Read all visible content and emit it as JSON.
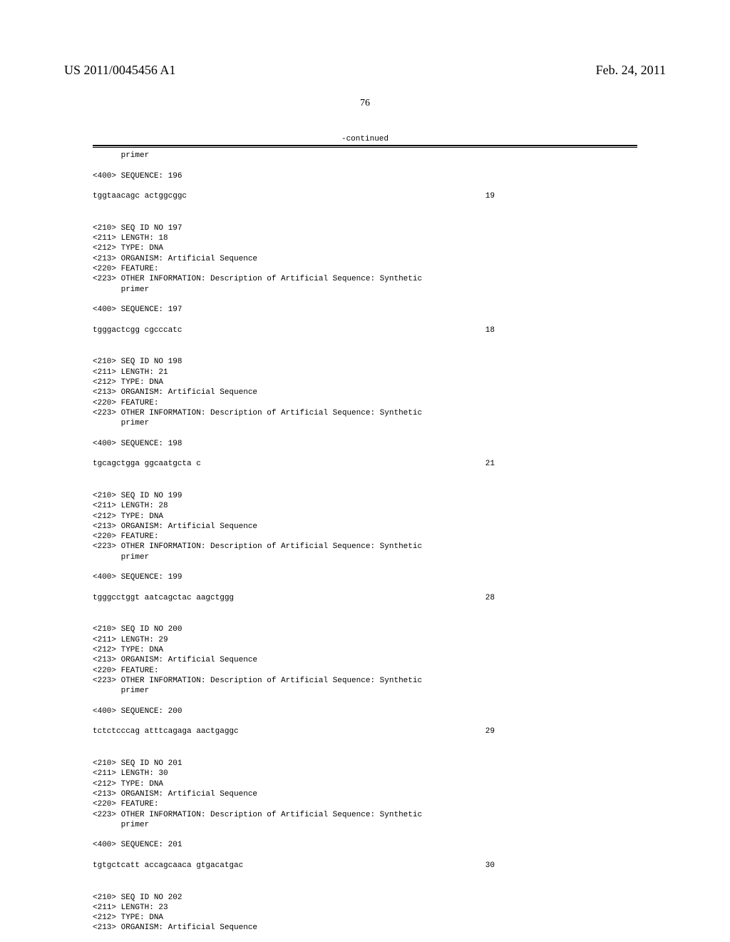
{
  "header": {
    "publication_number": "US 2011/0045456 A1",
    "publication_date": "Feb. 24, 2011"
  },
  "page_number": "76",
  "continued_label": "-continued",
  "sequences": [
    {
      "pre_lines": [
        "      primer",
        "",
        "<400> SEQUENCE: 196",
        ""
      ],
      "seq_text": "tggtaacagc actggcggc",
      "seq_length": "19"
    },
    {
      "pre_lines": [
        "<210> SEQ ID NO 197",
        "<211> LENGTH: 18",
        "<212> TYPE: DNA",
        "<213> ORGANISM: Artificial Sequence",
        "<220> FEATURE:",
        "<223> OTHER INFORMATION: Description of Artificial Sequence: Synthetic",
        "      primer",
        "",
        "<400> SEQUENCE: 197",
        ""
      ],
      "seq_text": "tgggactcgg cgcccatc",
      "seq_length": "18"
    },
    {
      "pre_lines": [
        "<210> SEQ ID NO 198",
        "<211> LENGTH: 21",
        "<212> TYPE: DNA",
        "<213> ORGANISM: Artificial Sequence",
        "<220> FEATURE:",
        "<223> OTHER INFORMATION: Description of Artificial Sequence: Synthetic",
        "      primer",
        "",
        "<400> SEQUENCE: 198",
        ""
      ],
      "seq_text": "tgcagctgga ggcaatgcta c",
      "seq_length": "21"
    },
    {
      "pre_lines": [
        "<210> SEQ ID NO 199",
        "<211> LENGTH: 28",
        "<212> TYPE: DNA",
        "<213> ORGANISM: Artificial Sequence",
        "<220> FEATURE:",
        "<223> OTHER INFORMATION: Description of Artificial Sequence: Synthetic",
        "      primer",
        "",
        "<400> SEQUENCE: 199",
        ""
      ],
      "seq_text": "tgggcctggt aatcagctac aagctggg",
      "seq_length": "28"
    },
    {
      "pre_lines": [
        "<210> SEQ ID NO 200",
        "<211> LENGTH: 29",
        "<212> TYPE: DNA",
        "<213> ORGANISM: Artificial Sequence",
        "<220> FEATURE:",
        "<223> OTHER INFORMATION: Description of Artificial Sequence: Synthetic",
        "      primer",
        "",
        "<400> SEQUENCE: 200",
        ""
      ],
      "seq_text": "tctctcccag atttcagaga aactgaggc",
      "seq_length": "29"
    },
    {
      "pre_lines": [
        "<210> SEQ ID NO 201",
        "<211> LENGTH: 30",
        "<212> TYPE: DNA",
        "<213> ORGANISM: Artificial Sequence",
        "<220> FEATURE:",
        "<223> OTHER INFORMATION: Description of Artificial Sequence: Synthetic",
        "      primer",
        "",
        "<400> SEQUENCE: 201",
        ""
      ],
      "seq_text": "tgtgctcatt accagcaaca gtgacatgac",
      "seq_length": "30"
    },
    {
      "pre_lines": [
        "<210> SEQ ID NO 202",
        "<211> LENGTH: 23",
        "<212> TYPE: DNA",
        "<213> ORGANISM: Artificial Sequence"
      ],
      "seq_text": "",
      "seq_length": ""
    }
  ]
}
